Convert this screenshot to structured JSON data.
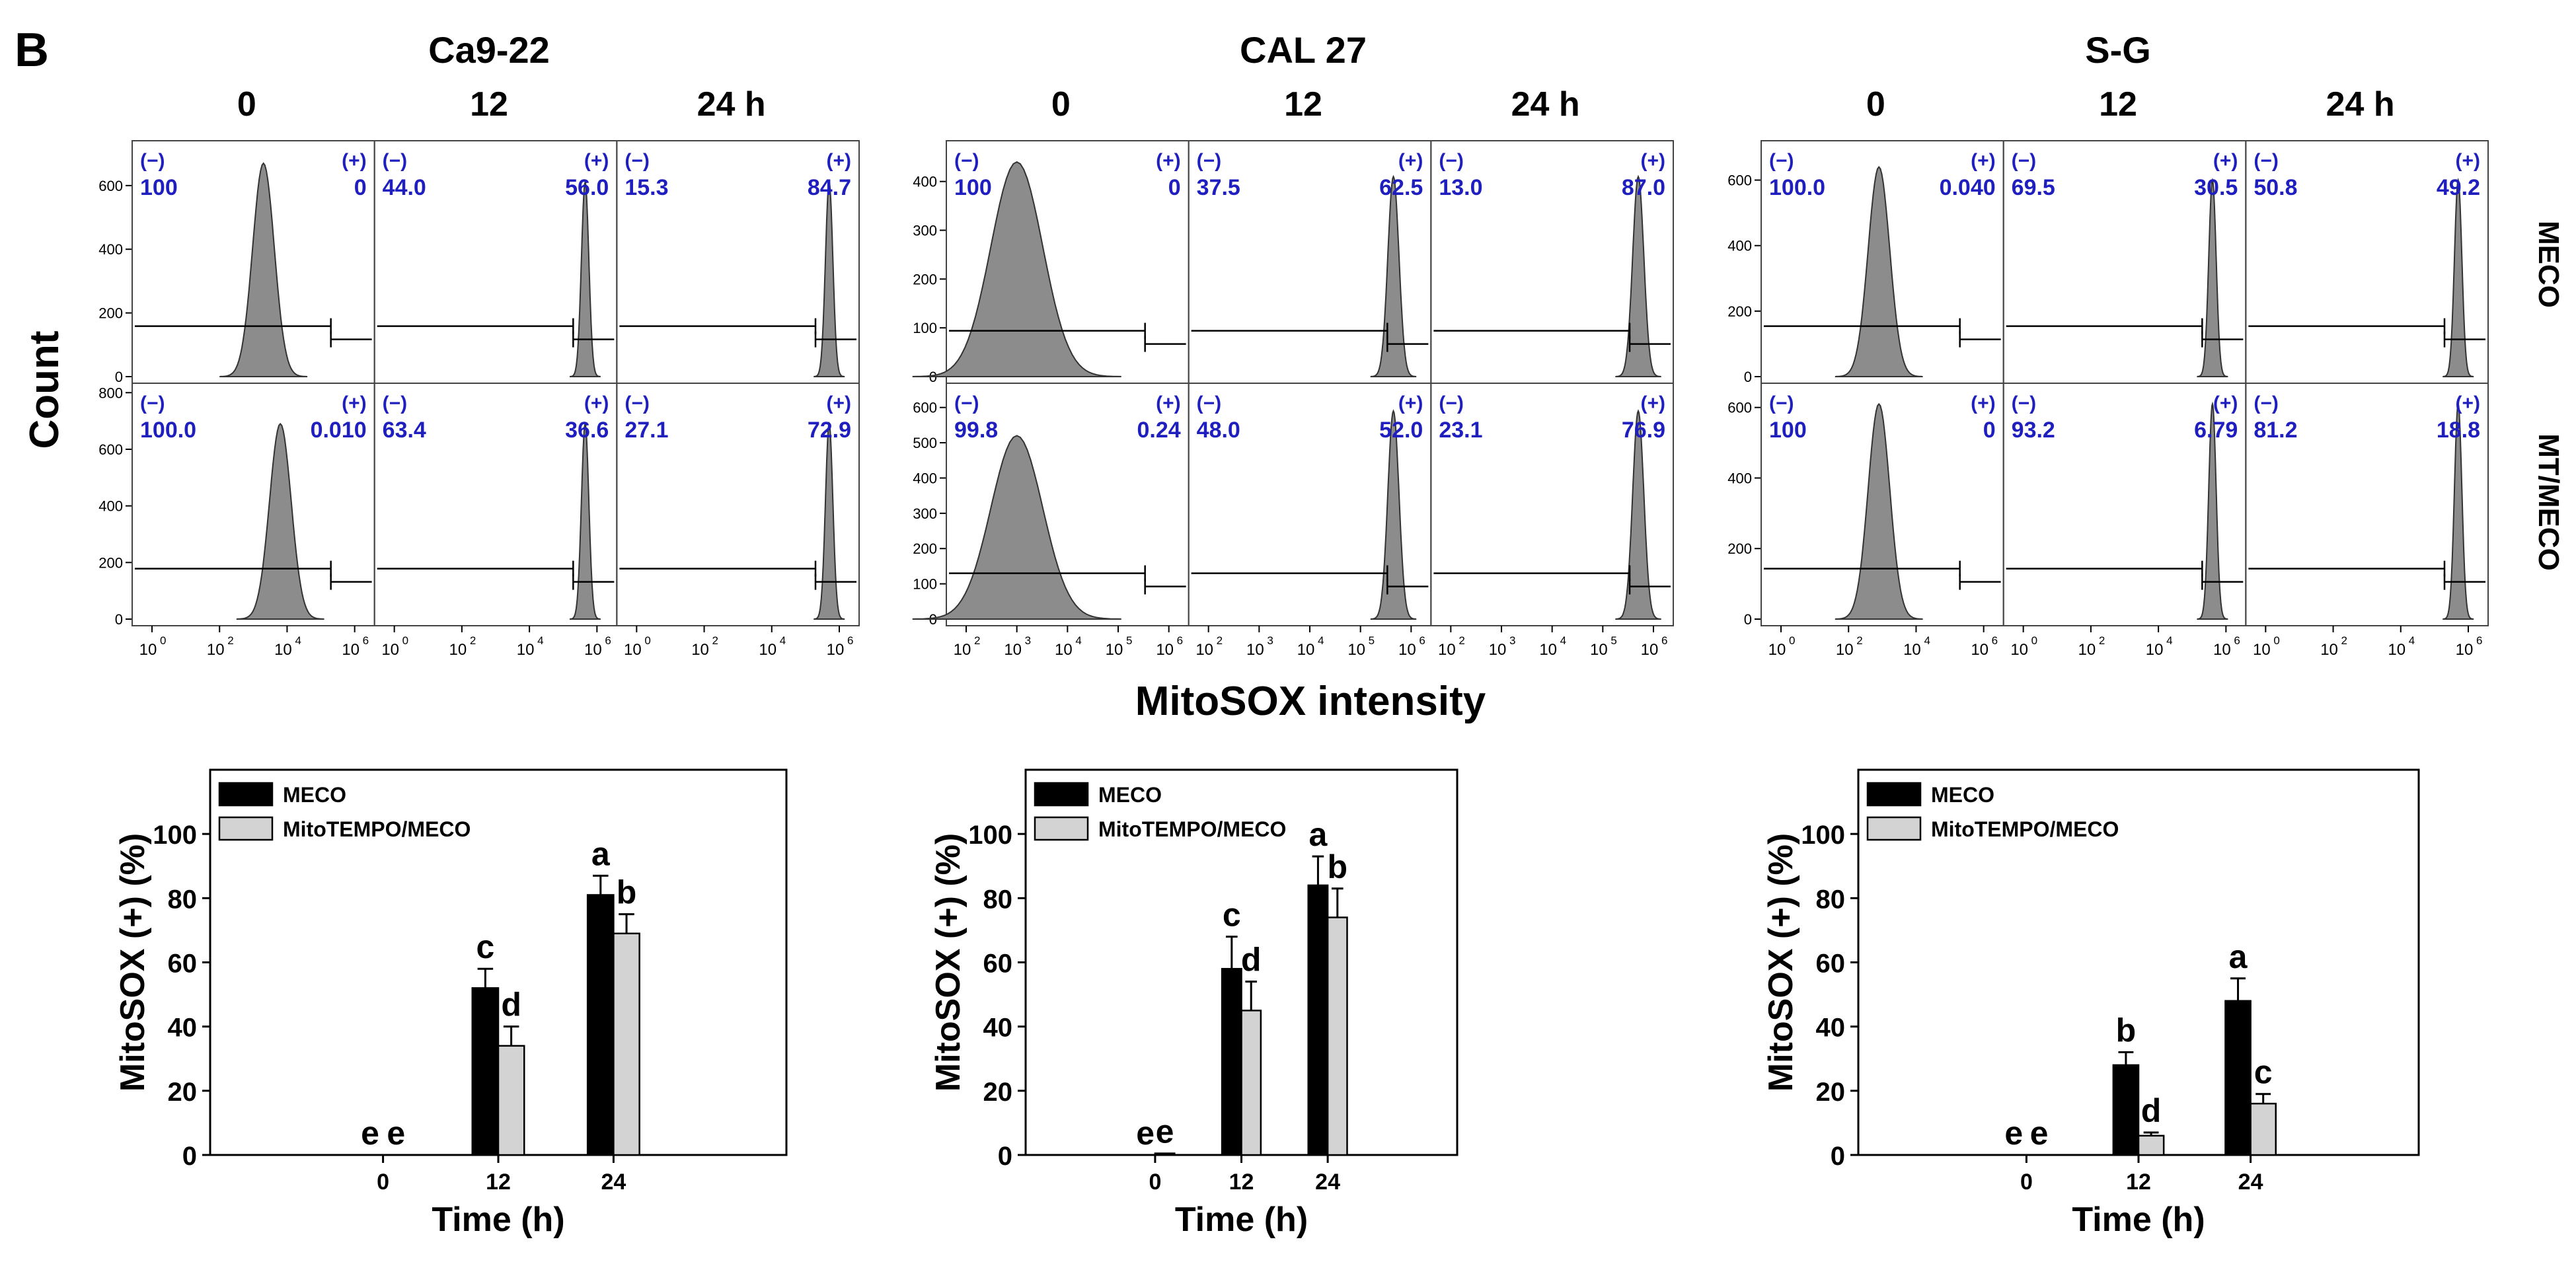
{
  "figure": {
    "panel_letter": "B",
    "flow_ylabel": "Count",
    "flow_xlabel": "MitoSOX intensity",
    "treatment_labels": [
      "MECO",
      "MT/MECO"
    ],
    "colors": {
      "histogram_fill": "#8c8c8c",
      "percent_text": "#1f1fbf",
      "bar_meco": "#000000",
      "bar_mitotempo": "#d3d3d3"
    }
  },
  "chart_data": [
    {
      "type": "histogram",
      "cell_line": "Ca9-22",
      "time_labels": [
        "0",
        "12",
        "24 h"
      ],
      "gate_labels": [
        "(−)",
        "(+)"
      ],
      "xscale": "log",
      "x_tick_labels": [
        "10",
        "10",
        "10",
        "10"
      ],
      "x_tick_exponents": [
        "0",
        "2",
        "4",
        "6"
      ],
      "rows": [
        {
          "treatment": "MECO",
          "y_ticks": [
            0,
            200,
            400,
            600
          ],
          "ymax": 720,
          "samples": [
            {
              "time": "0",
              "neg": "100",
              "pos": "0",
              "peak_log": 3.3,
              "peak_count": 670
            },
            {
              "time": "12",
              "neg": "44.0",
              "pos": "56.0",
              "peak_log": 5.65,
              "peak_count": 610
            },
            {
              "time": "24 h",
              "neg": "15.3",
              "pos": "84.7",
              "peak_log": 5.7,
              "peak_count": 610
            }
          ]
        },
        {
          "treatment": "MT/MECO",
          "y_ticks": [
            0,
            200,
            400,
            600,
            800
          ],
          "ymax": 810,
          "samples": [
            {
              "time": "0",
              "neg": "100.0",
              "pos": "0.010",
              "peak_log": 3.8,
              "peak_count": 690
            },
            {
              "time": "12",
              "neg": "63.4",
              "pos": "36.6",
              "peak_log": 5.65,
              "peak_count": 690
            },
            {
              "time": "24 h",
              "neg": "27.1",
              "pos": "72.9",
              "peak_log": 5.7,
              "peak_count": 690
            }
          ]
        }
      ]
    },
    {
      "type": "histogram",
      "cell_line": "CAL 27",
      "time_labels": [
        "0",
        "12",
        "24 h"
      ],
      "gate_labels": [
        "(−)",
        "(+)"
      ],
      "xscale": "log",
      "x_tick_labels": [
        "10",
        "10",
        "10",
        "10",
        "10"
      ],
      "x_tick_exponents": [
        "2",
        "3",
        "4",
        "5",
        "6"
      ],
      "rows": [
        {
          "treatment": "MECO",
          "y_ticks": [
            0,
            100,
            200,
            300,
            400
          ],
          "ymax": 470,
          "samples": [
            {
              "time": "0",
              "neg": "100",
              "pos": "0",
              "peak_log": 3.0,
              "peak_count": 440
            },
            {
              "time": "12",
              "neg": "37.5",
              "pos": "62.5",
              "peak_log": 5.65,
              "peak_count": 410
            },
            {
              "time": "24 h",
              "neg": "13.0",
              "pos": "87.0",
              "peak_log": 5.7,
              "peak_count": 410
            }
          ]
        },
        {
          "treatment": "MT/MECO",
          "y_ticks": [
            0,
            100,
            200,
            300,
            400,
            500,
            600
          ],
          "ymax": 650,
          "samples": [
            {
              "time": "0",
              "neg": "99.8",
              "pos": "0.24",
              "peak_log": 3.0,
              "peak_count": 520
            },
            {
              "time": "12",
              "neg": "48.0",
              "pos": "52.0",
              "peak_log": 5.65,
              "peak_count": 590
            },
            {
              "time": "24 h",
              "neg": "23.1",
              "pos": "76.9",
              "peak_log": 5.7,
              "peak_count": 590
            }
          ]
        }
      ]
    },
    {
      "type": "histogram",
      "cell_line": "S-G",
      "time_labels": [
        "0",
        "12",
        "24 h"
      ],
      "gate_labels": [
        "(−)",
        "(+)"
      ],
      "xscale": "log",
      "x_tick_labels": [
        "10",
        "10",
        "10",
        "10"
      ],
      "x_tick_exponents": [
        "0",
        "2",
        "4",
        "6"
      ],
      "rows": [
        {
          "treatment": "MECO",
          "y_ticks": [
            0,
            200,
            400,
            600
          ],
          "ymax": 700,
          "samples": [
            {
              "time": "0",
              "neg": "100.0",
              "pos": "0.040",
              "peak_log": 2.9,
              "peak_count": 640
            },
            {
              "time": "12",
              "neg": "69.5",
              "pos": "30.5",
              "peak_log": 5.6,
              "peak_count": 600
            },
            {
              "time": "24 h",
              "neg": "50.8",
              "pos": "49.2",
              "peak_log": 5.7,
              "peak_count": 600
            }
          ]
        },
        {
          "treatment": "MT/MECO",
          "y_ticks": [
            0,
            200,
            400,
            600
          ],
          "ymax": 650,
          "samples": [
            {
              "time": "0",
              "neg": "100",
              "pos": "0",
              "peak_log": 2.9,
              "peak_count": 610
            },
            {
              "time": "12",
              "neg": "93.2",
              "pos": "6.79",
              "peak_log": 5.6,
              "peak_count": 610
            },
            {
              "time": "24 h",
              "neg": "81.2",
              "pos": "18.8",
              "peak_log": 5.7,
              "peak_count": 610
            }
          ]
        }
      ]
    },
    {
      "type": "bar",
      "cell_line": "Ca9-22",
      "categories": [
        "0",
        "12",
        "24"
      ],
      "xlabel": "Time (h)",
      "ylabel": "MitoSOX (+) (%)",
      "ylim": [
        0,
        120
      ],
      "y_ticks": [
        0,
        20,
        40,
        60,
        80,
        100
      ],
      "legend": "top-left",
      "series": [
        {
          "name": "MECO",
          "values": [
            0,
            52,
            81
          ],
          "errors": [
            0,
            6,
            6
          ],
          "letters": [
            "e",
            "c",
            "a"
          ]
        },
        {
          "name": "MitoTEMPO/MECO",
          "values": [
            0,
            34,
            69
          ],
          "errors": [
            0,
            6,
            6
          ],
          "letters": [
            "e",
            "d",
            "b"
          ]
        }
      ]
    },
    {
      "type": "bar",
      "cell_line": "CAL 27",
      "categories": [
        "0",
        "12",
        "24"
      ],
      "xlabel": "Time (h)",
      "ylabel": "MitoSOX (+) (%)",
      "ylim": [
        0,
        120
      ],
      "y_ticks": [
        0,
        20,
        40,
        60,
        80,
        100
      ],
      "legend": "top-left",
      "series": [
        {
          "name": "MECO",
          "values": [
            0,
            58,
            84
          ],
          "errors": [
            0,
            10,
            9
          ],
          "letters": [
            "e",
            "c",
            "a"
          ]
        },
        {
          "name": "MitoTEMPO/MECO",
          "values": [
            0.5,
            45,
            74
          ],
          "errors": [
            0,
            9,
            9
          ],
          "letters": [
            "e",
            "d",
            "b"
          ]
        }
      ]
    },
    {
      "type": "bar",
      "cell_line": "S-G",
      "categories": [
        "0",
        "12",
        "24"
      ],
      "xlabel": "Time (h)",
      "ylabel": "MitoSOX (+) (%)",
      "ylim": [
        0,
        120
      ],
      "y_ticks": [
        0,
        20,
        40,
        60,
        80,
        100
      ],
      "legend": "top-left",
      "series": [
        {
          "name": "MECO",
          "values": [
            0,
            28,
            48
          ],
          "errors": [
            0,
            4,
            7
          ],
          "letters": [
            "e",
            "b",
            "a"
          ]
        },
        {
          "name": "MitoTEMPO/MECO",
          "values": [
            0,
            6,
            16
          ],
          "errors": [
            0,
            1,
            3
          ],
          "letters": [
            "e",
            "d",
            "c"
          ]
        }
      ]
    }
  ]
}
